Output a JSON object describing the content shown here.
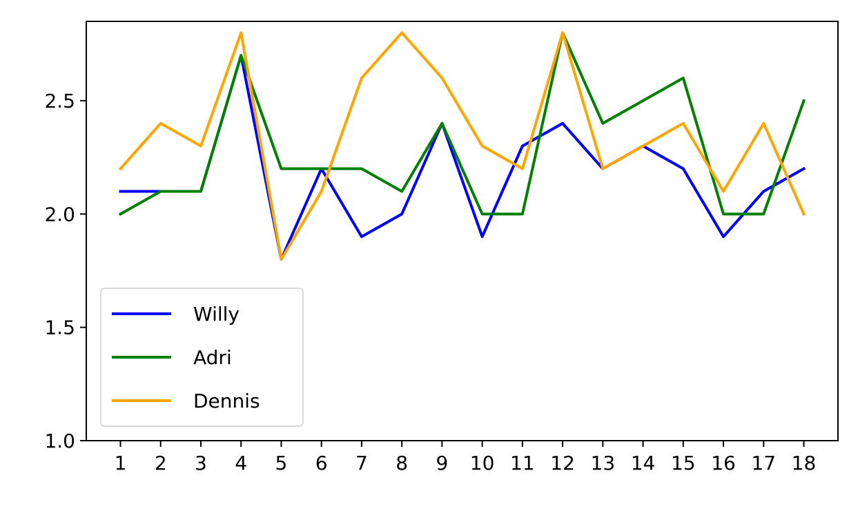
{
  "chart_data": {
    "type": "line",
    "x": [
      1,
      2,
      3,
      4,
      5,
      6,
      7,
      8,
      9,
      10,
      11,
      12,
      13,
      14,
      15,
      16,
      17,
      18
    ],
    "x_tick_labels": [
      "1",
      "2",
      "3",
      "4",
      "5",
      "6",
      "7",
      "8",
      "9",
      "10",
      "11",
      "12",
      "13",
      "14",
      "15",
      "16",
      "17",
      "18"
    ],
    "y_ticks": [
      1.0,
      1.5,
      2.0,
      2.5
    ],
    "y_tick_labels": [
      "1.0",
      "1.5",
      "2.0",
      "2.5"
    ],
    "ylim": [
      1.0,
      2.85
    ],
    "xlim": [
      0.15,
      18.85
    ],
    "grid": false,
    "legend_position": "lower-left",
    "series": [
      {
        "name": "Willy",
        "color": "#0000ff",
        "values": [
          2.1,
          2.1,
          2.1,
          2.7,
          1.8,
          2.2,
          1.9,
          2.0,
          2.4,
          1.9,
          2.3,
          2.4,
          2.2,
          2.3,
          2.2,
          1.9,
          2.1,
          2.2
        ]
      },
      {
        "name": "Adri",
        "color": "#008000",
        "values": [
          2.0,
          2.1,
          2.1,
          2.7,
          2.2,
          2.2,
          2.2,
          2.1,
          2.4,
          2.0,
          2.0,
          2.8,
          2.4,
          2.5,
          2.6,
          2.0,
          2.0,
          2.5
        ]
      },
      {
        "name": "Dennis",
        "color": "#ffa500",
        "values": [
          2.2,
          2.4,
          2.3,
          2.8,
          1.8,
          2.1,
          2.6,
          2.8,
          2.6,
          2.3,
          2.2,
          2.8,
          2.2,
          2.3,
          2.4,
          2.1,
          2.4,
          2.0
        ]
      }
    ]
  }
}
